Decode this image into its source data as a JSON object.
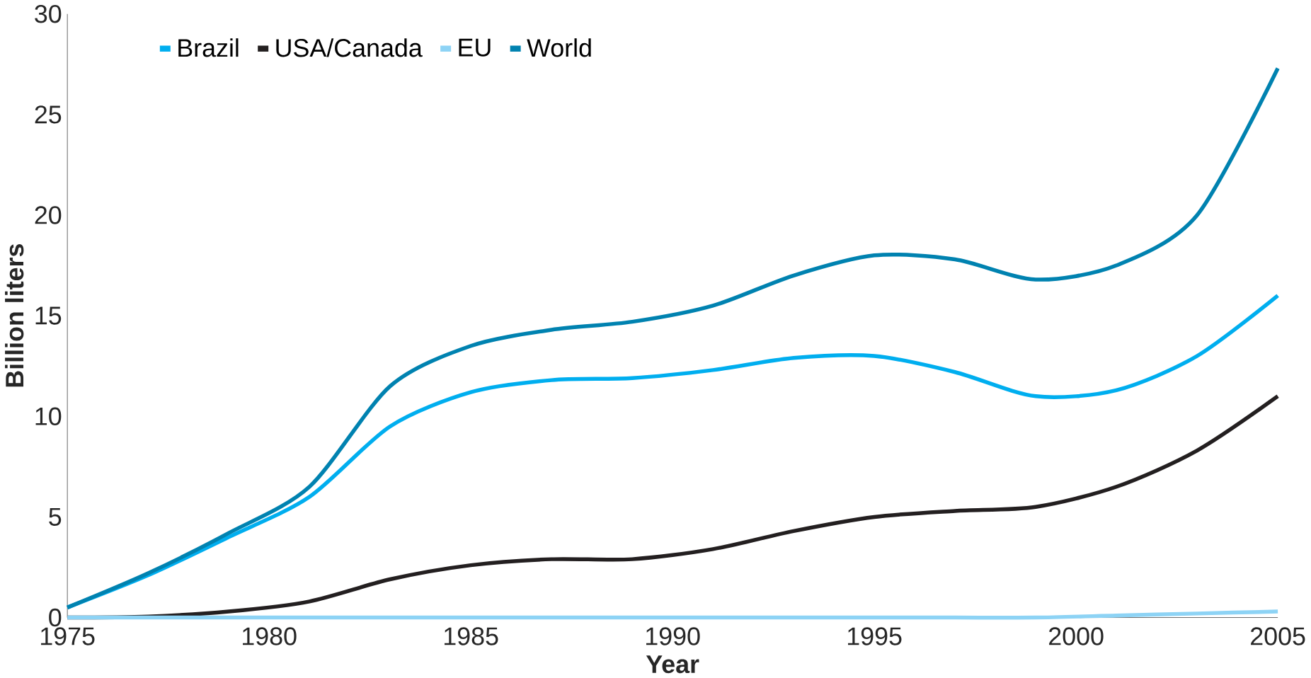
{
  "chart_data": {
    "type": "line",
    "xlabel": "Year",
    "ylabel": "Billion liters",
    "x": [
      1975,
      1977,
      1979,
      1981,
      1983,
      1985,
      1987,
      1989,
      1991,
      1993,
      1995,
      1997,
      1999,
      2001,
      2003,
      2005
    ],
    "series": [
      {
        "name": "Brazil",
        "color": "#00aeef",
        "values": [
          0.5,
          2.1,
          4.0,
          6.0,
          9.5,
          11.2,
          11.8,
          11.9,
          12.3,
          12.9,
          13.0,
          12.2,
          11.0,
          11.3,
          13.0,
          16.0
        ]
      },
      {
        "name": "USA/Canada",
        "color": "#231f20",
        "values": [
          0,
          0.05,
          0.3,
          0.8,
          1.9,
          2.6,
          2.9,
          2.9,
          3.4,
          4.3,
          5.0,
          5.3,
          5.5,
          6.5,
          8.3,
          11.0
        ]
      },
      {
        "name": "EU",
        "color": "#8dd3f5",
        "values": [
          0,
          0,
          0,
          0,
          0,
          0,
          0,
          0,
          0,
          0,
          0,
          0,
          0,
          0.1,
          0.2,
          0.3
        ]
      },
      {
        "name": "World",
        "color": "#0082b0",
        "values": [
          0.5,
          2.2,
          4.2,
          6.5,
          11.5,
          13.5,
          14.3,
          14.7,
          15.5,
          17.0,
          18.0,
          17.8,
          16.8,
          17.5,
          20.0,
          27.3
        ]
      }
    ],
    "xlim": [
      1975,
      2005
    ],
    "xticks": [
      1975,
      1980,
      1985,
      1990,
      1995,
      2000,
      2005
    ],
    "ylim": [
      0,
      30
    ],
    "yticks": [
      0,
      5,
      10,
      15,
      20,
      25,
      30
    ],
    "legend": "top left",
    "grid": false,
    "marker": "none",
    "line_style": "solid"
  }
}
